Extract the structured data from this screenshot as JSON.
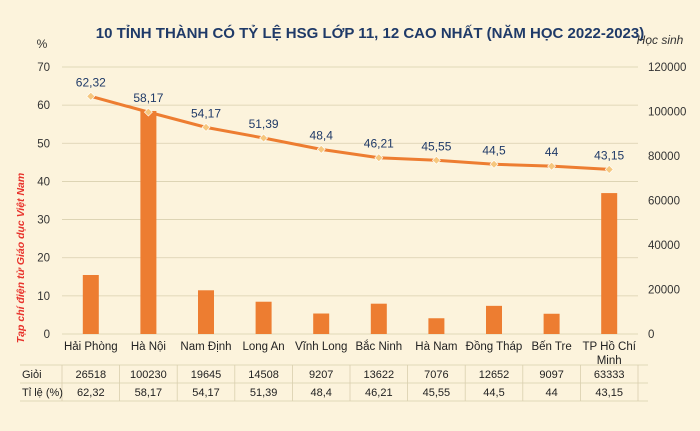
{
  "colors": {
    "background": "#fcf3dc",
    "title": "#1f3a68",
    "bar": "#ed7d31",
    "line": "#ed7d31",
    "marker": "#f6c77e",
    "grid": "#d9cfae",
    "axis_text": "#333333",
    "source_text": "#e8332c"
  },
  "source_note": "Tạp chí điện tử Giáo dục Việt Nam",
  "chart_data": {
    "type": "bar+line",
    "title": "10 TỈNH THÀNH CÓ TỶ LỆ HSG LỚP 11, 12 CAO NHẤT (NĂM HỌC 2022-2023)",
    "left_axis_unit": "%",
    "right_axis_unit": "Học sinh",
    "left_ylim": [
      0,
      70
    ],
    "left_ticks": [
      "0",
      "10",
      "20",
      "30",
      "40",
      "50",
      "60",
      "70"
    ],
    "right_ylim": [
      0,
      120000
    ],
    "right_ticks": [
      "0",
      "20000",
      "40000",
      "60000",
      "80000",
      "100000",
      "120000"
    ],
    "grid": true,
    "categories": [
      "Hải Phòng",
      "Hà Nội",
      "Nam Định",
      "Long An",
      "Vĩnh Long",
      "Bắc Ninh",
      "Hà Nam",
      "Đồng Tháp",
      "Bến Tre",
      "TP Hồ Chí Minh"
    ],
    "category_labels": [
      [
        "Hải Phòng"
      ],
      [
        "Hà Nội"
      ],
      [
        "Nam Định"
      ],
      [
        "Long An"
      ],
      [
        "Vĩnh Long"
      ],
      [
        "Bắc Ninh"
      ],
      [
        "Hà Nam"
      ],
      [
        "Đồng Tháp"
      ],
      [
        "Bến Tre"
      ],
      [
        "TP Hồ Chí",
        "Minh"
      ]
    ],
    "series": [
      {
        "name": "Giỏi",
        "type": "bar",
        "axis": "right",
        "values": [
          26518,
          100230,
          19645,
          14508,
          9207,
          13622,
          7076,
          12652,
          9097,
          63333
        ]
      },
      {
        "name": "Tỉ lệ (%)",
        "type": "line",
        "axis": "left",
        "values": [
          62.32,
          58.17,
          54.17,
          51.39,
          48.4,
          46.21,
          45.55,
          44.5,
          44,
          43.15
        ]
      }
    ],
    "data_labels": [
      "62,32",
      "58,17",
      "54,17",
      "51,39",
      "48,4",
      "46,21",
      "45,55",
      "44,5",
      "44",
      "43,15"
    ],
    "table": {
      "rows": [
        {
          "label": "Giỏi",
          "cells": [
            "26518",
            "100230",
            "19645",
            "14508",
            "9207",
            "13622",
            "7076",
            "12652",
            "9097",
            "63333"
          ]
        },
        {
          "label": "Tỉ lệ (%)",
          "cells": [
            "62,32",
            "58,17",
            "54,17",
            "51,39",
            "48,4",
            "46,21",
            "45,55",
            "44,5",
            "44",
            "43,15"
          ]
        }
      ]
    }
  }
}
